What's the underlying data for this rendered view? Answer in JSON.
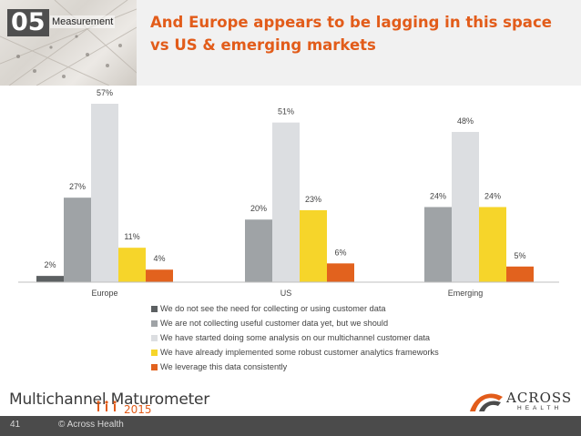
{
  "header": {
    "section_number": "05",
    "section_label": "Measurement",
    "title": "And Europe appears to be lagging in this space vs US & emerging markets"
  },
  "chart_data": {
    "type": "bar",
    "categories": [
      "Europe",
      "US",
      "Emerging"
    ],
    "series": [
      {
        "name": "We do not see the need for collecting or using customer data",
        "color": "#5c6062",
        "values": [
          2,
          0,
          0
        ],
        "labels": [
          "2%",
          "",
          ""
        ]
      },
      {
        "name": "We are not collecting useful customer data yet, but we should",
        "color": "#9fa3a6",
        "values": [
          27,
          20,
          24
        ],
        "labels": [
          "27%",
          "20%",
          "24%"
        ]
      },
      {
        "name": "We have started doing some analysis on our multichannel customer data",
        "color": "#dcdee1",
        "values": [
          57,
          51,
          48
        ],
        "labels": [
          "57%",
          "51%",
          "48%"
        ]
      },
      {
        "name": "We have already implemented some robust customer analytics frameworks",
        "color": "#f6d52a",
        "values": [
          11,
          23,
          24
        ],
        "labels": [
          "11%",
          "23%",
          "24%"
        ]
      },
      {
        "name": "We leverage this data consistently",
        "color": "#e2621e",
        "values": [
          4,
          6,
          5
        ],
        "labels": [
          "4%",
          "6%",
          "5%"
        ]
      }
    ],
    "ylim": [
      0,
      57
    ],
    "grid": false,
    "legend_position": "bottom"
  },
  "footer": {
    "brand_name": "Multichannel Maturometer",
    "brand_year": "2015",
    "logo_word": "ACROSS",
    "logo_sub": "HEALTH",
    "page_number": "41",
    "copyright": "© Across Health"
  }
}
